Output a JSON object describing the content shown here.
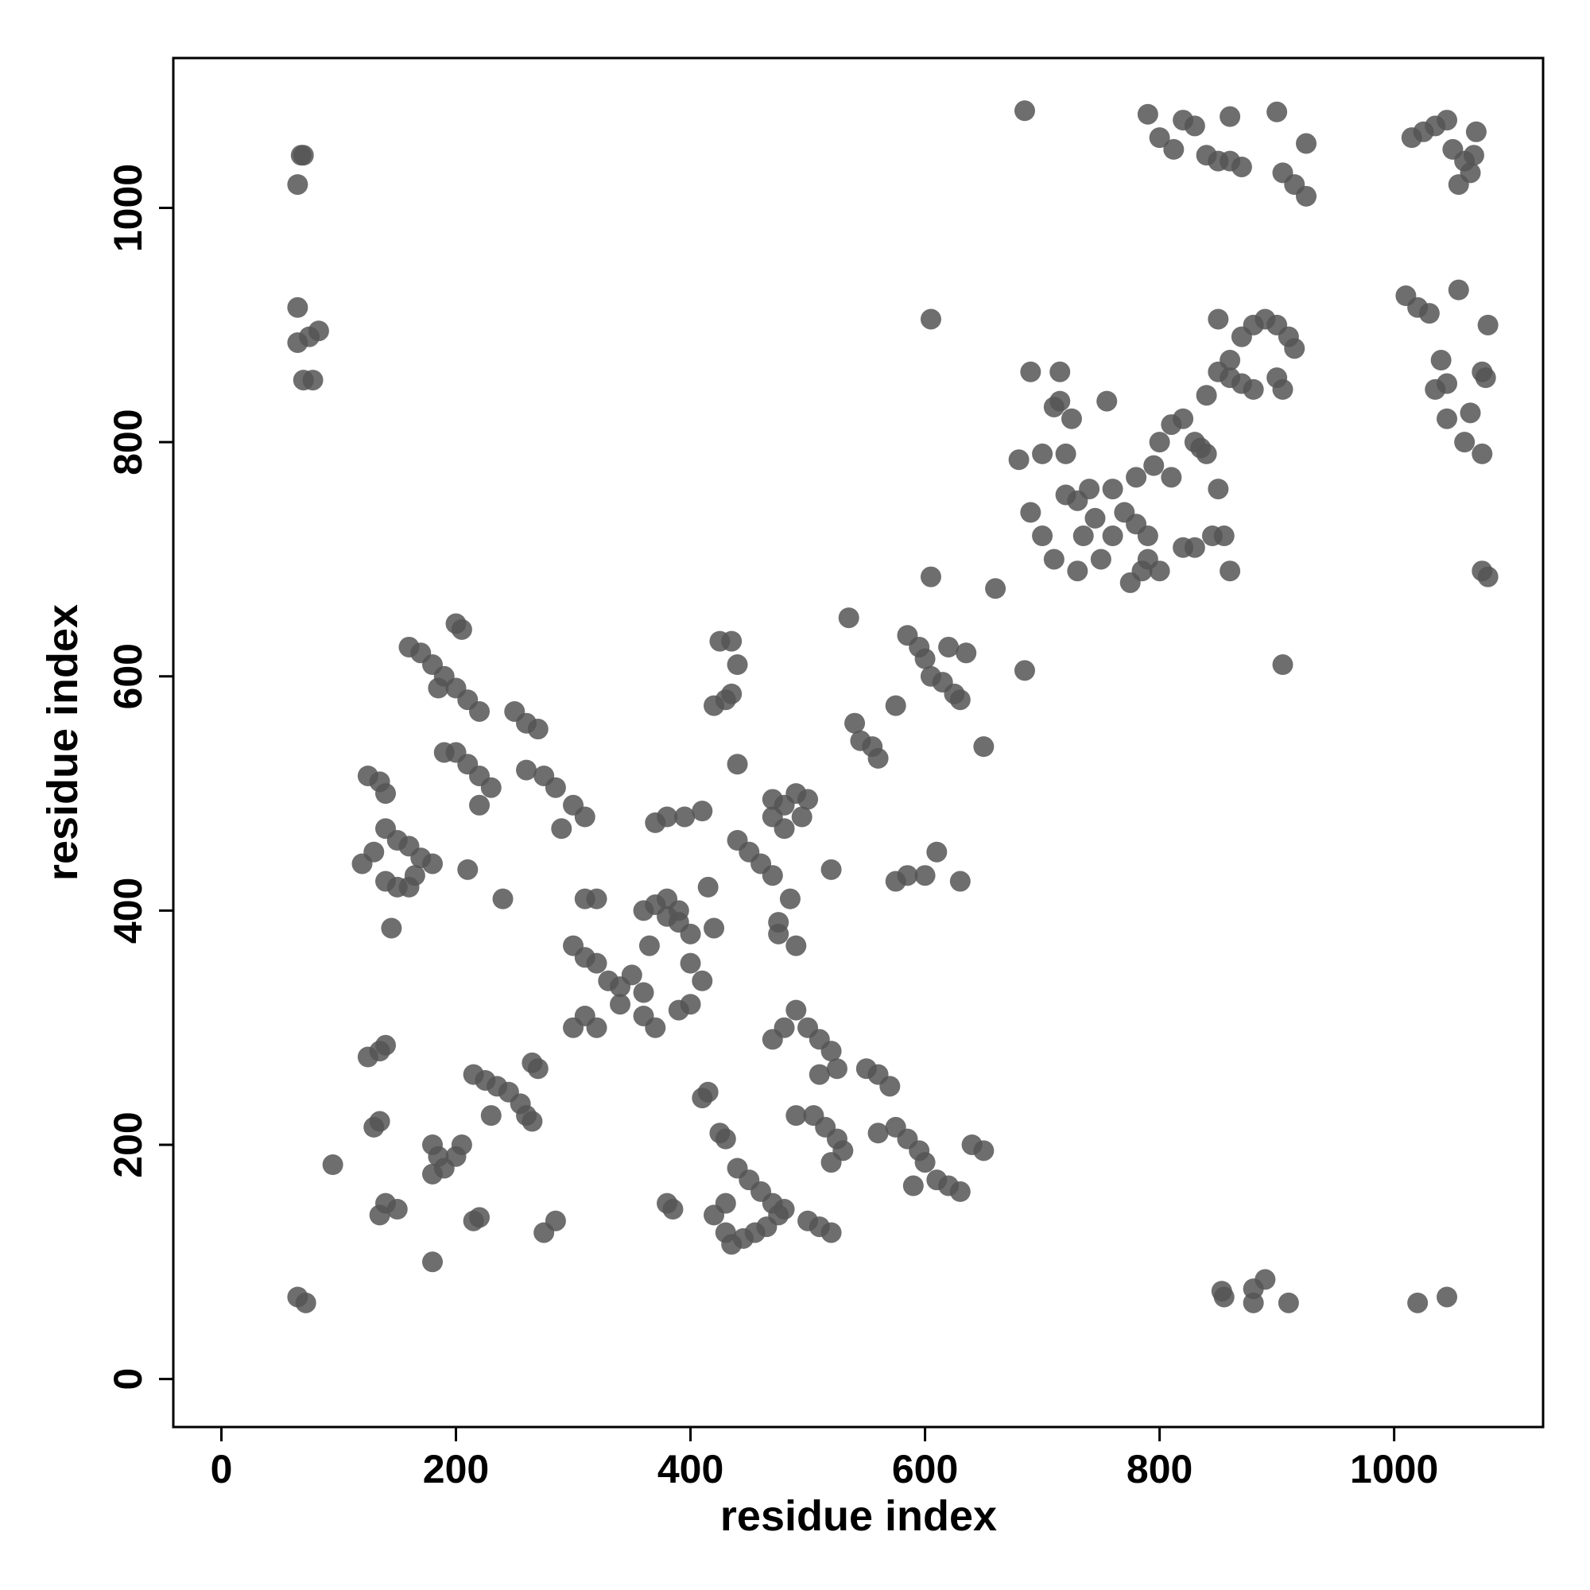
{
  "chart_data": {
    "type": "scatter",
    "xlabel": "residue index",
    "ylabel": "residue index",
    "color": "#555555",
    "grid": false,
    "xlim": [
      -41,
      1127
    ],
    "ylim": [
      -41,
      1128
    ],
    "xticks": [
      0,
      200,
      400,
      600,
      800,
      1000
    ],
    "yticks": [
      0,
      200,
      400,
      600,
      800,
      1000
    ],
    "x": [
      65,
      68,
      70,
      65,
      65,
      75,
      83,
      70,
      78,
      65,
      72,
      685,
      790,
      800,
      812,
      820,
      830,
      840,
      850,
      860,
      870,
      860,
      900,
      905,
      915,
      925,
      925,
      1015,
      1025,
      1035,
      1045,
      1050,
      1060,
      1065,
      1055,
      1070,
      1068,
      1010,
      1020,
      1030,
      1055,
      1040,
      1045,
      1035,
      1045,
      1060,
      1065,
      1075,
      1078,
      1080,
      1075,
      1080,
      1075,
      853,
      855,
      880,
      890,
      880,
      910,
      1020,
      1045,
      680,
      700,
      720,
      690,
      700,
      710,
      730,
      750,
      760,
      770,
      780,
      760,
      740,
      730,
      720,
      745,
      735,
      800,
      790,
      790,
      780,
      785,
      775,
      795,
      800,
      810,
      820,
      830,
      835,
      840,
      850,
      810,
      820,
      830,
      845,
      855,
      860,
      905,
      840,
      850,
      860,
      870,
      880,
      890,
      900,
      910,
      915,
      870,
      880,
      900,
      905,
      860,
      850,
      690,
      715,
      715,
      725,
      755,
      710,
      540,
      545,
      555,
      560,
      575,
      585,
      595,
      600,
      605,
      615,
      625,
      630,
      635,
      620,
      535,
      605,
      605,
      660,
      685,
      650,
      600,
      575,
      585,
      630,
      610,
      425,
      435,
      440,
      420,
      430,
      435,
      440,
      470,
      480,
      490,
      500,
      480,
      495,
      470,
      440,
      450,
      460,
      470,
      485,
      490,
      475,
      475,
      520,
      410,
      415,
      420,
      300,
      310,
      320,
      310,
      320,
      330,
      340,
      350,
      360,
      360,
      370,
      380,
      390,
      390,
      400,
      380,
      395,
      370,
      365,
      370,
      360,
      340,
      310,
      300,
      320,
      390,
      400,
      400,
      410,
      380,
      120,
      130,
      140,
      150,
      160,
      170,
      180,
      140,
      150,
      160,
      165,
      135,
      125,
      140,
      190,
      200,
      210,
      220,
      230,
      220,
      260,
      275,
      285,
      300,
      310,
      290,
      250,
      260,
      270,
      160,
      170,
      180,
      190,
      200,
      210,
      220,
      200,
      205,
      185,
      210,
      240,
      145,
      125,
      135,
      140,
      215,
      225,
      235,
      245,
      255,
      260,
      265,
      230,
      135,
      130,
      140,
      150,
      135,
      180,
      185,
      190,
      200,
      205,
      180,
      180,
      95,
      215,
      220,
      275,
      285,
      265,
      270,
      420,
      430,
      440,
      450,
      460,
      470,
      445,
      455,
      465,
      475,
      480,
      430,
      435,
      500,
      510,
      520,
      380,
      385,
      410,
      415,
      425,
      430,
      470,
      480,
      490,
      500,
      510,
      520,
      525,
      510,
      550,
      560,
      570,
      490,
      505,
      515,
      525,
      530,
      520,
      560,
      575,
      585,
      595,
      600,
      590,
      610,
      620,
      630,
      640,
      650
    ],
    "y": [
      1020,
      1045,
      1045,
      915,
      885,
      890,
      895,
      853,
      853,
      70,
      65,
      1083,
      1080,
      1060,
      1050,
      1075,
      1070,
      1045,
      1040,
      1040,
      1035,
      1078,
      1082,
      1030,
      1020,
      1010,
      1055,
      1060,
      1065,
      1070,
      1075,
      1050,
      1040,
      1030,
      1020,
      1065,
      1045,
      925,
      915,
      910,
      930,
      870,
      850,
      845,
      820,
      800,
      825,
      860,
      855,
      900,
      790,
      685,
      690,
      75,
      70,
      77,
      85,
      65,
      65,
      65,
      70,
      785,
      790,
      790,
      740,
      720,
      700,
      690,
      700,
      720,
      740,
      770,
      760,
      760,
      750,
      755,
      735,
      720,
      690,
      700,
      720,
      730,
      690,
      680,
      780,
      800,
      815,
      820,
      800,
      795,
      790,
      760,
      770,
      710,
      710,
      720,
      720,
      690,
      610,
      840,
      860,
      870,
      890,
      900,
      905,
      900,
      890,
      880,
      850,
      845,
      855,
      845,
      855,
      905,
      860,
      860,
      835,
      820,
      835,
      830,
      560,
      545,
      540,
      530,
      575,
      635,
      625,
      615,
      600,
      595,
      585,
      580,
      620,
      625,
      650,
      905,
      685,
      675,
      605,
      540,
      430,
      425,
      430,
      425,
      450,
      630,
      630,
      610,
      575,
      580,
      585,
      525,
      495,
      490,
      500,
      495,
      470,
      480,
      480,
      460,
      450,
      440,
      430,
      410,
      370,
      380,
      390,
      435,
      485,
      420,
      385,
      370,
      360,
      355,
      410,
      410,
      340,
      335,
      345,
      330,
      400,
      405,
      410,
      400,
      390,
      380,
      480,
      480,
      475,
      370,
      300,
      310,
      320,
      310,
      300,
      300,
      315,
      320,
      355,
      340,
      395,
      440,
      450,
      470,
      460,
      455,
      445,
      440,
      425,
      420,
      420,
      430,
      510,
      515,
      500,
      535,
      535,
      525,
      515,
      505,
      490,
      520,
      515,
      505,
      490,
      480,
      470,
      570,
      560,
      555,
      625,
      620,
      610,
      600,
      590,
      580,
      570,
      645,
      640,
      590,
      435,
      410,
      385,
      275,
      280,
      285,
      260,
      255,
      250,
      245,
      235,
      225,
      220,
      225,
      220,
      215,
      150,
      145,
      140,
      200,
      190,
      180,
      190,
      200,
      175,
      100,
      183,
      135,
      138,
      125,
      135,
      270,
      265,
      140,
      150,
      180,
      170,
      160,
      150,
      120,
      125,
      130,
      140,
      145,
      125,
      115,
      135,
      130,
      125,
      150,
      145,
      240,
      245,
      210,
      205,
      290,
      300,
      315,
      300,
      290,
      280,
      265,
      260,
      265,
      260,
      250,
      225,
      225,
      215,
      205,
      195,
      185,
      210,
      215,
      205,
      195,
      185,
      165,
      170,
      165,
      160,
      200,
      195
    ]
  }
}
